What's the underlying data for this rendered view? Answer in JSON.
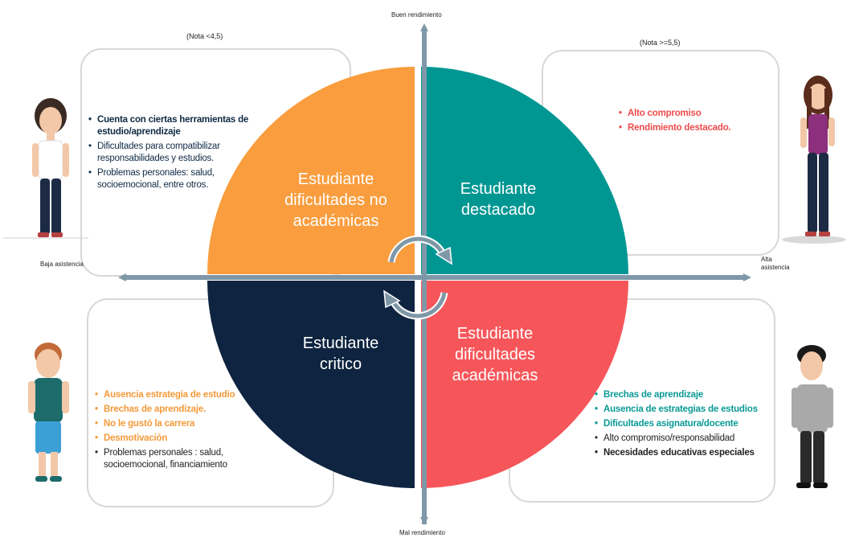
{
  "colors": {
    "orange": "#f99d3e",
    "teal": "#009793",
    "navy": "#0e2440",
    "red": "#f6565a",
    "axis": "#7f98a8"
  },
  "axes": {
    "top": "Buen rendimiento",
    "bottom": "Mal rendimiento",
    "left": "Baja asistencia",
    "right_line1": "Alta",
    "right_line2": "asistencia"
  },
  "notes": {
    "left": "(Nota  <4,5)",
    "right": "(Nota  >=5,5)"
  },
  "quadrants": {
    "top_left": {
      "title_lines": [
        "Estudiante",
        "dificultades no",
        "académicas"
      ],
      "items": [
        {
          "text": "Cuenta con ciertas herramientas de estudio/aprendizaje"
        },
        {
          "text": "Dificultades para compatibilizar responsabilidades y estudios."
        },
        {
          "text": "Problemas personales: salud, socioemocional, entre otros."
        }
      ]
    },
    "top_right": {
      "title_lines": [
        "Estudiante",
        "destacado"
      ],
      "items": [
        {
          "text": "Alto compromiso"
        },
        {
          "text": "Rendimiento destacado."
        }
      ]
    },
    "bottom_left": {
      "title_lines": [
        "Estudiante",
        "critico"
      ],
      "items": [
        {
          "text": "Ausencia estrategia de estudio"
        },
        {
          "text": "Brechas de aprendizaje."
        },
        {
          "text": "No le gustó la carrera"
        },
        {
          "text": "Desmotivación"
        },
        {
          "text": "Problemas personales : salud, socioemocional, financiamiento"
        }
      ]
    },
    "bottom_right": {
      "title_lines": [
        "Estudiante",
        "dificultades",
        "académicas"
      ],
      "items": [
        {
          "text": "Brechas de aprendizaje"
        },
        {
          "text": "Ausencia de estrategias de estudios"
        },
        {
          "text": "Dificultades asignatura/docente"
        },
        {
          "text": "Alto compromiso/responsabilidad"
        },
        {
          "text": "Necesidades educativas especiales"
        }
      ]
    }
  }
}
